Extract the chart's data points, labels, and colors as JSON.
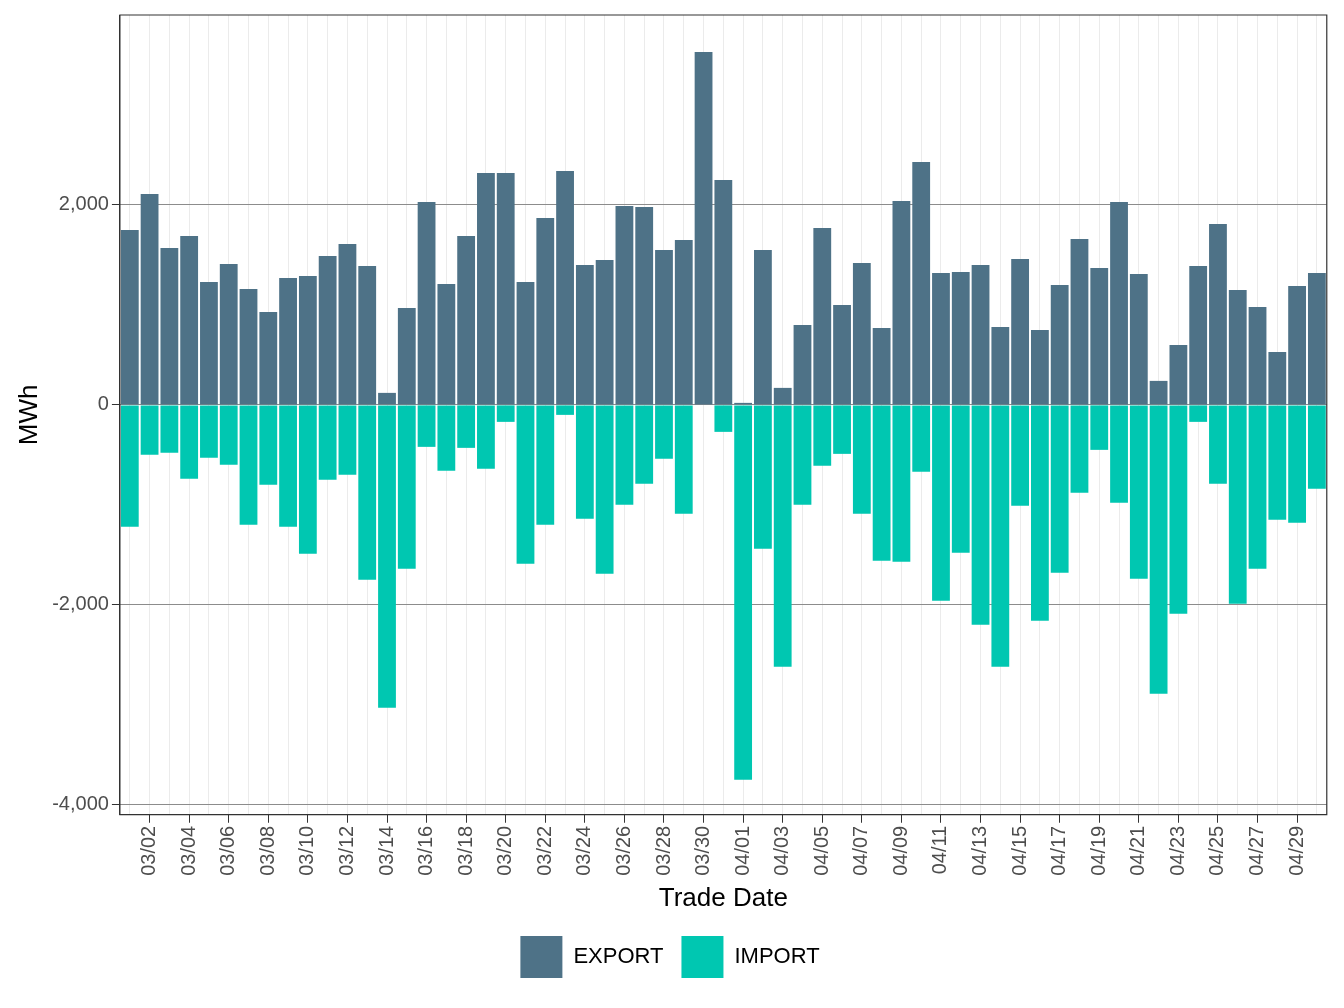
{
  "chart_data": {
    "type": "bar",
    "stacked": true,
    "xlabel": "Trade Date",
    "ylabel": "MWh",
    "categories": [
      null,
      "03/02",
      null,
      "03/04",
      null,
      "03/06",
      null,
      "03/08",
      null,
      "03/10",
      null,
      "03/12",
      null,
      "03/14",
      null,
      "03/16",
      null,
      "03/18",
      null,
      "03/20",
      null,
      "03/22",
      null,
      "03/24",
      null,
      "03/26",
      null,
      "03/28",
      null,
      "03/30",
      null,
      "04/01",
      null,
      "04/03",
      null,
      "04/05",
      null,
      "04/07",
      null,
      "04/09",
      null,
      "04/11",
      null,
      "04/13",
      null,
      "04/15",
      null,
      "04/17",
      null,
      "04/19",
      null,
      "04/21",
      null,
      "04/23",
      null,
      "04/25",
      null,
      "04/27",
      null,
      "04/29",
      null
    ],
    "series": [
      {
        "name": "EXPORT",
        "color": "#4e7287",
        "values": [
          1750,
          2110,
          1570,
          1690,
          1230,
          1410,
          1160,
          930,
          1270,
          1290,
          1490,
          1610,
          1390,
          120,
          970,
          2030,
          1210,
          1690,
          2320,
          2320,
          1230,
          1870,
          2340,
          1400,
          1450,
          1990,
          1980,
          1550,
          1650,
          3530,
          2250,
          20,
          1550,
          170,
          800,
          1770,
          1000,
          1420,
          770,
          2040,
          2430,
          1320,
          1330,
          1400,
          780,
          1460,
          750,
          1200,
          1660,
          1370,
          2030,
          1310,
          240,
          600,
          1390,
          1810,
          1150,
          980,
          530,
          1190,
          1320
        ]
      },
      {
        "name": "IMPORT",
        "color": "#00c7b1",
        "values": [
          -1220,
          -500,
          -480,
          -740,
          -530,
          -600,
          -1200,
          -800,
          -1220,
          -1490,
          -750,
          -700,
          -1750,
          -3030,
          -1640,
          -420,
          -660,
          -430,
          -640,
          -170,
          -1590,
          -1200,
          -100,
          -1140,
          -1690,
          -1000,
          -790,
          -540,
          -1090,
          0,
          -270,
          -3750,
          -1440,
          -2620,
          -1000,
          -610,
          -490,
          -1090,
          -1560,
          -1570,
          -670,
          -1960,
          -1480,
          -2200,
          -2620,
          -1010,
          -2160,
          -1680,
          -880,
          -450,
          -980,
          -1740,
          -2890,
          -2090,
          -170,
          -790,
          -1990,
          -1640,
          -1150,
          -1180,
          -840
        ]
      }
    ],
    "ylim": [
      -4100,
      3900
    ],
    "yticks": [
      {
        "value": -4000,
        "label": "-4,000"
      },
      {
        "value": -2000,
        "label": "-2,000"
      },
      {
        "value": 0,
        "label": "0"
      },
      {
        "value": 2000,
        "label": "2,000"
      }
    ],
    "grid": true,
    "legend": "bottom"
  }
}
